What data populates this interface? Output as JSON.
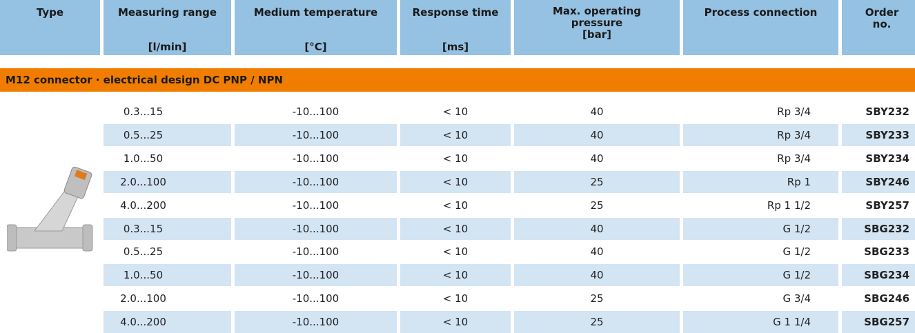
{
  "headers": [
    {
      "title": "Type"
    },
    {
      "title": "Measuring range",
      "unit": "[l/min]"
    },
    {
      "title": "Medium temperature",
      "unit": "[°C]"
    },
    {
      "title": "Response time",
      "unit": "[ms]"
    },
    {
      "title": "Max. operating pressure",
      "unit": "[bar]"
    },
    {
      "title": "Process connection"
    },
    {
      "title": "Order no."
    }
  ],
  "section": "M12 connector · electrical design DC PNP / NPN",
  "rows": [
    [
      "0.3...15",
      "-10...100",
      "< 10",
      "40",
      "Rp 3/4",
      "SBY232"
    ],
    [
      "0.5...25",
      "-10...100",
      "< 10",
      "40",
      "Rp 3/4",
      "SBY233"
    ],
    [
      "1.0...50",
      "-10...100",
      "< 10",
      "40",
      "Rp 3/4",
      "SBY234"
    ],
    [
      "2.0...100",
      "-10...100",
      "< 10",
      "25",
      "Rp 1",
      "SBY246"
    ],
    [
      "4.0...200",
      "-10...100",
      "< 10",
      "25",
      "Rp 1 1/2",
      "SBY257"
    ],
    [
      "0.3...15",
      "-10...100",
      "< 10",
      "40",
      "G 1/2",
      "SBG232"
    ],
    [
      "0.5...25",
      "-10...100",
      "< 10",
      "40",
      "G 1/2",
      "SBG233"
    ],
    [
      "1.0...50",
      "-10...100",
      "< 10",
      "40",
      "G 1/2",
      "SBG234"
    ],
    [
      "2.0...100",
      "-10...100",
      "< 10",
      "25",
      "G 3/4",
      "SBG246"
    ],
    [
      "4.0...200",
      "-10...100",
      "< 10",
      "25",
      "G 1 1/4",
      "SBG257"
    ]
  ]
}
